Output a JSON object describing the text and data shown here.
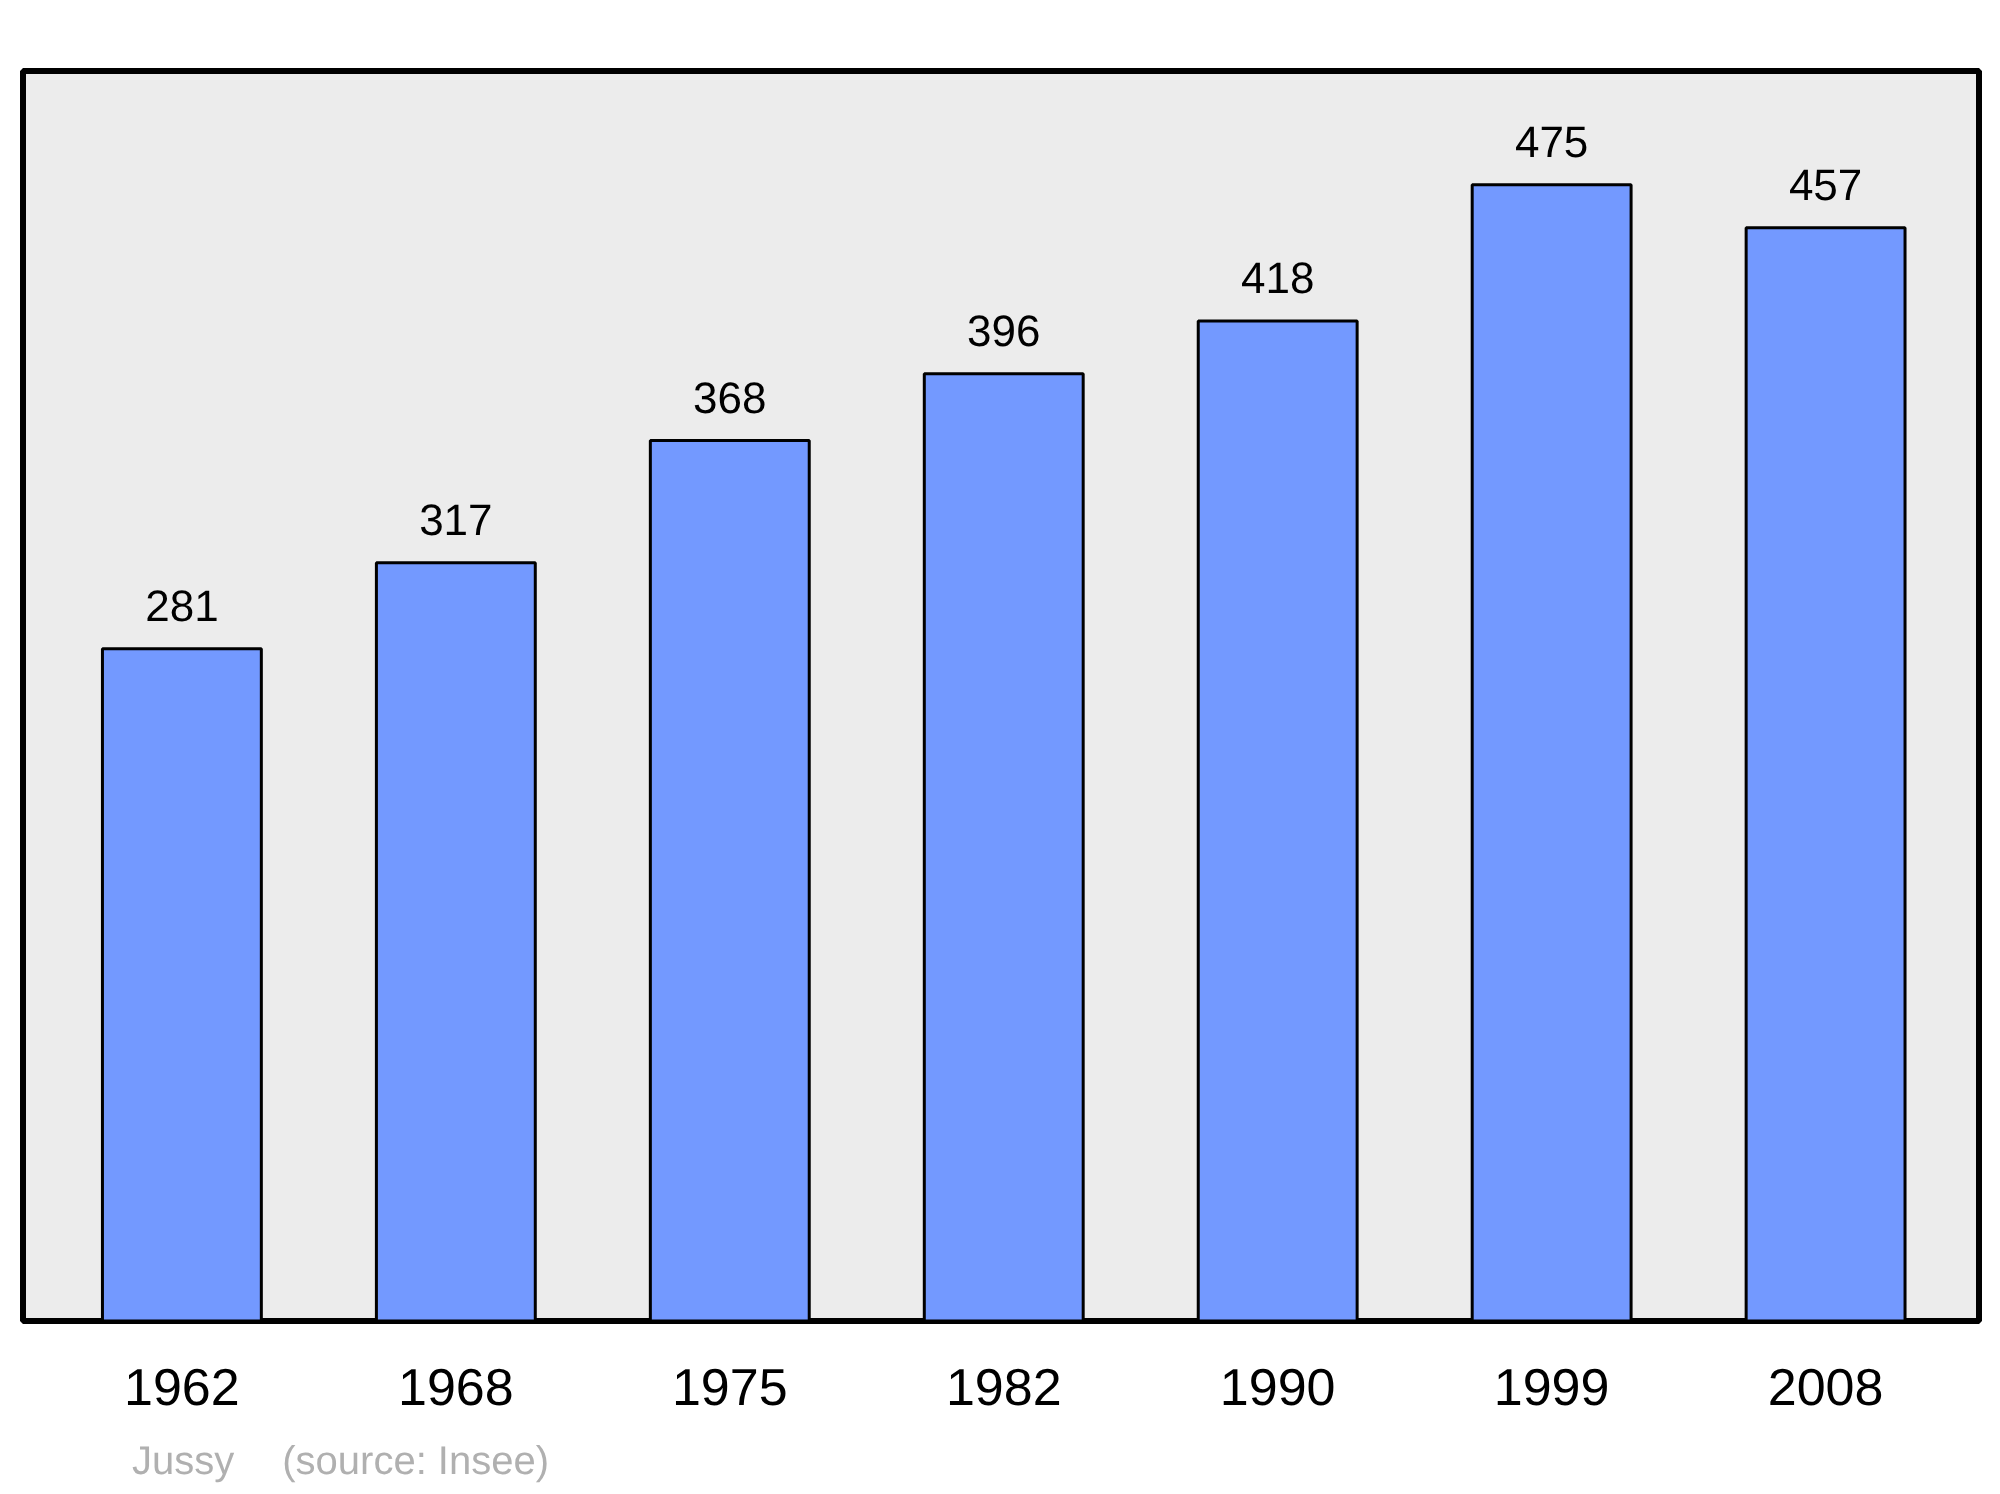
{
  "chart_data": {
    "type": "bar",
    "categories": [
      "1962",
      "1968",
      "1975",
      "1982",
      "1990",
      "1999",
      "2008"
    ],
    "values": [
      281,
      317,
      368,
      396,
      418,
      475,
      457
    ],
    "color": "#7399ff",
    "data_labels": true,
    "grid": false,
    "annotations": [
      "Jussy",
      "(source: Insee)"
    ]
  }
}
